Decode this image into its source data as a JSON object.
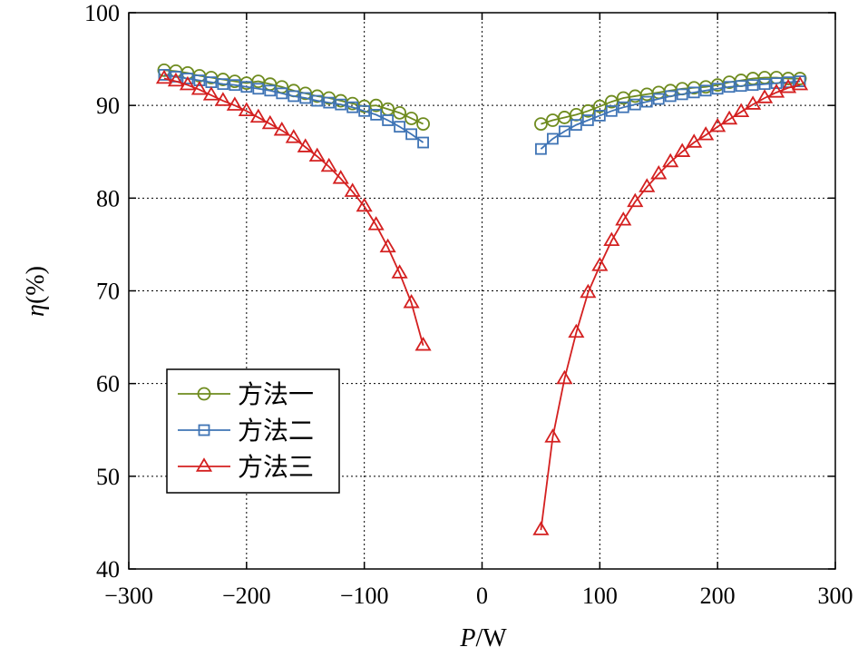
{
  "chart_data": {
    "type": "line",
    "title": "",
    "xlabel_italic": "P",
    "xlabel_unit": "/W",
    "ylabel_italic": "η",
    "ylabel_unit": "(%)",
    "xlim": [
      -300,
      300
    ],
    "ylim": [
      40,
      100
    ],
    "x_ticks": [
      -300,
      -200,
      -100,
      0,
      100,
      200,
      300
    ],
    "x_tick_labels": [
      "−300",
      "−200",
      "−100",
      "0",
      "100",
      "200",
      "300"
    ],
    "y_ticks": [
      40,
      50,
      60,
      70,
      80,
      90,
      100
    ],
    "y_tick_labels": [
      "40",
      "50",
      "60",
      "70",
      "80",
      "90",
      "100"
    ],
    "grid": true,
    "legend_position": "lower-left",
    "series": [
      {
        "name": "方法一",
        "color": "#6e8b1e",
        "marker": "circle",
        "x": [
          -270,
          -260,
          -250,
          -240,
          -230,
          -220,
          -210,
          -200,
          -190,
          -180,
          -170,
          -160,
          -150,
          -140,
          -130,
          -120,
          -110,
          -100,
          -90,
          -80,
          -70,
          -60,
          -50,
          50,
          60,
          70,
          80,
          90,
          100,
          110,
          120,
          130,
          140,
          150,
          160,
          170,
          180,
          190,
          200,
          210,
          220,
          230,
          240,
          250,
          260,
          270
        ],
        "y": [
          93.8,
          93.7,
          93.5,
          93.2,
          93.0,
          92.8,
          92.6,
          92.4,
          92.6,
          92.3,
          92.0,
          91.6,
          91.3,
          91.0,
          90.8,
          90.5,
          90.2,
          89.9,
          90.0,
          89.6,
          89.2,
          88.6,
          88.0,
          88.0,
          88.4,
          88.7,
          89.0,
          89.4,
          89.9,
          90.4,
          90.8,
          91.0,
          91.2,
          91.4,
          91.6,
          91.8,
          91.9,
          92.0,
          92.2,
          92.5,
          92.7,
          92.9,
          93.0,
          93.0,
          92.9,
          92.9
        ]
      },
      {
        "name": "方法二",
        "color": "#3f74b5",
        "marker": "square",
        "x": [
          -270,
          -260,
          -250,
          -240,
          -230,
          -220,
          -210,
          -200,
          -190,
          -180,
          -170,
          -160,
          -150,
          -140,
          -130,
          -120,
          -110,
          -100,
          -90,
          -80,
          -70,
          -60,
          -50,
          50,
          60,
          70,
          80,
          90,
          100,
          110,
          120,
          130,
          140,
          150,
          160,
          170,
          180,
          190,
          200,
          210,
          220,
          230,
          240,
          250,
          260,
          270
        ],
        "y": [
          93.3,
          93.1,
          92.9,
          92.7,
          92.5,
          92.3,
          92.2,
          92.0,
          91.8,
          91.6,
          91.3,
          91.0,
          90.8,
          90.5,
          90.3,
          90.1,
          89.8,
          89.4,
          89.0,
          88.4,
          87.7,
          86.9,
          86.0,
          85.3,
          86.4,
          87.2,
          87.9,
          88.4,
          88.9,
          89.4,
          89.8,
          90.1,
          90.4,
          90.7,
          91.0,
          91.2,
          91.4,
          91.6,
          91.8,
          92.0,
          92.1,
          92.2,
          92.3,
          92.4,
          92.5,
          92.6
        ]
      },
      {
        "name": "方法三",
        "color": "#d42020",
        "marker": "triangle",
        "x": [
          -270,
          -260,
          -250,
          -240,
          -230,
          -220,
          -210,
          -200,
          -190,
          -180,
          -170,
          -160,
          -150,
          -140,
          -130,
          -120,
          -110,
          -100,
          -90,
          -80,
          -70,
          -60,
          -50,
          50,
          60,
          70,
          80,
          90,
          100,
          110,
          120,
          130,
          140,
          150,
          160,
          170,
          180,
          190,
          200,
          210,
          220,
          230,
          240,
          250,
          260,
          270
        ],
        "y": [
          92.9,
          92.6,
          92.2,
          91.7,
          91.1,
          90.5,
          90.0,
          89.4,
          88.7,
          88.0,
          87.3,
          86.5,
          85.5,
          84.5,
          83.4,
          82.1,
          80.7,
          79.1,
          77.1,
          74.7,
          71.9,
          68.7,
          64.1,
          44.2,
          54.2,
          60.5,
          65.5,
          69.8,
          72.7,
          75.4,
          77.6,
          79.6,
          81.2,
          82.6,
          83.9,
          85.0,
          86.0,
          86.8,
          87.7,
          88.5,
          89.3,
          90.1,
          90.8,
          91.4,
          91.9,
          92.2
        ]
      }
    ]
  }
}
